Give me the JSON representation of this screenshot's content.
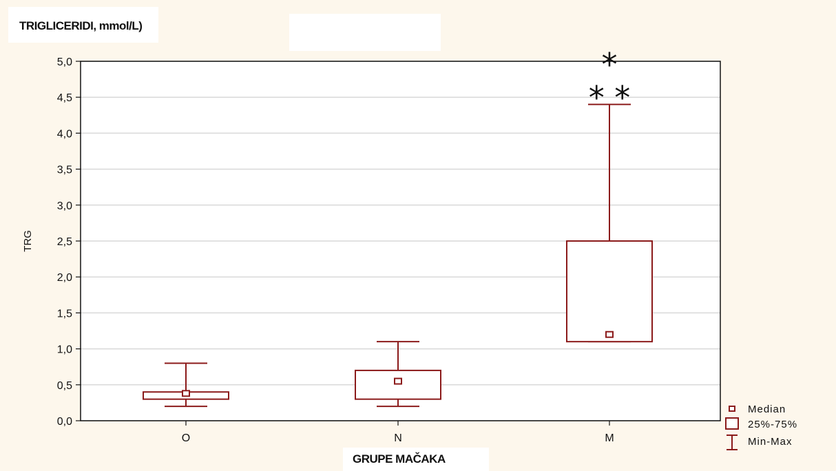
{
  "chart_data": {
    "type": "boxplot",
    "title": "TRIGLICERIDI, mmol/L)",
    "xlabel": "GRUPE MAČAKA",
    "ylabel": "TRG",
    "ylim": [
      0,
      5
    ],
    "yticks": [
      "0,0",
      "0,5",
      "1,0",
      "1,5",
      "2,0",
      "2,5",
      "3,0",
      "3,5",
      "4,0",
      "4,5",
      "5,0"
    ],
    "grid": true,
    "categories": [
      "O",
      "N",
      "M"
    ],
    "boxes": [
      {
        "category": "O",
        "min": 0.2,
        "q1": 0.3,
        "median": 0.38,
        "q3": 0.4,
        "max": 0.8
      },
      {
        "category": "N",
        "min": 0.2,
        "q1": 0.3,
        "median": 0.55,
        "q3": 0.7,
        "max": 1.1
      },
      {
        "category": "M",
        "min": 1.1,
        "q1": 1.1,
        "median": 1.2,
        "q3": 2.5,
        "max": 4.4
      }
    ],
    "significance": [
      {
        "category": "M",
        "text": "*"
      },
      {
        "category": "M",
        "text": "* *"
      }
    ],
    "legend": [
      "Median",
      "25%-75%",
      "Min-Max"
    ],
    "legend_position": "bottom-right",
    "colors": {
      "series": "#8b1a1a",
      "grid": "#d9d9d9",
      "axis": "#111111"
    }
  }
}
